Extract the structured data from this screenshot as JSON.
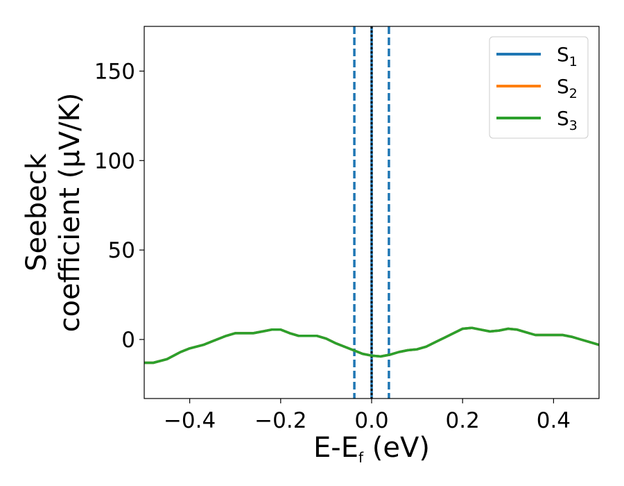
{
  "chart_data": {
    "type": "line",
    "xlabel_main": "E-E",
    "xlabel_sub": "f",
    "xlabel_unit": " (eV)",
    "ylabel_line1": "Seebeck",
    "ylabel_line2": "coefficient  (μV/K)",
    "xlim": [
      -0.5,
      0.5
    ],
    "ylim": [
      -33,
      175
    ],
    "x_ticks": [
      -0.4,
      -0.2,
      0.0,
      0.2,
      0.4
    ],
    "x_tick_labels": [
      "−0.4",
      "−0.2",
      "0.0",
      "0.2",
      "0.4"
    ],
    "y_ticks": [
      0,
      50,
      100,
      150
    ],
    "y_tick_labels": [
      "0",
      "50",
      "100",
      "150"
    ],
    "grid": false,
    "legend_position": "top-right",
    "vertical_lines": [
      {
        "x": -0.038,
        "style": "dashed",
        "color": "#1f77b4"
      },
      {
        "x": 0.038,
        "style": "dashed",
        "color": "#1f77b4"
      },
      {
        "x": 0.0,
        "style": "solid",
        "color": "#1f77b4"
      },
      {
        "x": 0.0,
        "style": "dotted",
        "color": "#000000"
      }
    ],
    "x": [
      -0.5,
      -0.48,
      -0.45,
      -0.42,
      -0.4,
      -0.37,
      -0.35,
      -0.32,
      -0.3,
      -0.28,
      -0.26,
      -0.24,
      -0.22,
      -0.2,
      -0.18,
      -0.16,
      -0.14,
      -0.12,
      -0.1,
      -0.08,
      -0.06,
      -0.04,
      -0.02,
      0.0,
      0.02,
      0.04,
      0.06,
      0.08,
      0.1,
      0.12,
      0.14,
      0.16,
      0.18,
      0.2,
      0.22,
      0.24,
      0.26,
      0.28,
      0.3,
      0.32,
      0.34,
      0.36,
      0.38,
      0.4,
      0.42,
      0.44,
      0.46,
      0.48,
      0.5
    ],
    "series": [
      {
        "name": "S",
        "subscript": "1",
        "color": "#1f77b4",
        "values": [
          -13,
          -13,
          -11,
          -7,
          -5,
          -3,
          -1,
          2,
          3.5,
          3.5,
          3.5,
          4.5,
          5.5,
          5.5,
          3.5,
          2,
          2,
          2,
          0.5,
          -2,
          -4,
          -6,
          -8,
          -9,
          -9.5,
          -8.5,
          -7,
          -6,
          -5.5,
          -4,
          -1.5,
          1,
          3.5,
          6,
          6.5,
          5.5,
          4.5,
          5,
          6,
          5.5,
          4,
          2.5,
          2.5,
          2.5,
          2.5,
          1.5,
          0,
          -1.5,
          -3
        ]
      },
      {
        "name": "S",
        "subscript": "2",
        "color": "#ff7f0e",
        "values": [
          -13,
          -13,
          -11,
          -7,
          -5,
          -3,
          -1,
          2,
          3.5,
          3.5,
          3.5,
          4.5,
          5.5,
          5.5,
          3.5,
          2,
          2,
          2,
          0.5,
          -2,
          -4,
          -6,
          -8,
          -9,
          -9.5,
          -8.5,
          -7,
          -6,
          -5.5,
          -4,
          -1.5,
          1,
          3.5,
          6,
          6.5,
          5.5,
          4.5,
          5,
          6,
          5.5,
          4,
          2.5,
          2.5,
          2.5,
          2.5,
          1.5,
          0,
          -1.5,
          -3
        ]
      },
      {
        "name": "S",
        "subscript": "3",
        "color": "#2ca02c",
        "values": [
          -13,
          -13,
          -11,
          -7,
          -5,
          -3,
          -1,
          2,
          3.5,
          3.5,
          3.5,
          4.5,
          5.5,
          5.5,
          3.5,
          2,
          2,
          2,
          0.5,
          -2,
          -4,
          -6,
          -8,
          -9,
          -9.5,
          -8.5,
          -7,
          -6,
          -5.5,
          -4,
          -1.5,
          1,
          3.5,
          6,
          6.5,
          5.5,
          4.5,
          5,
          6,
          5.5,
          4,
          2.5,
          2.5,
          2.5,
          2.5,
          1.5,
          0,
          -1.5,
          -3
        ]
      }
    ]
  }
}
